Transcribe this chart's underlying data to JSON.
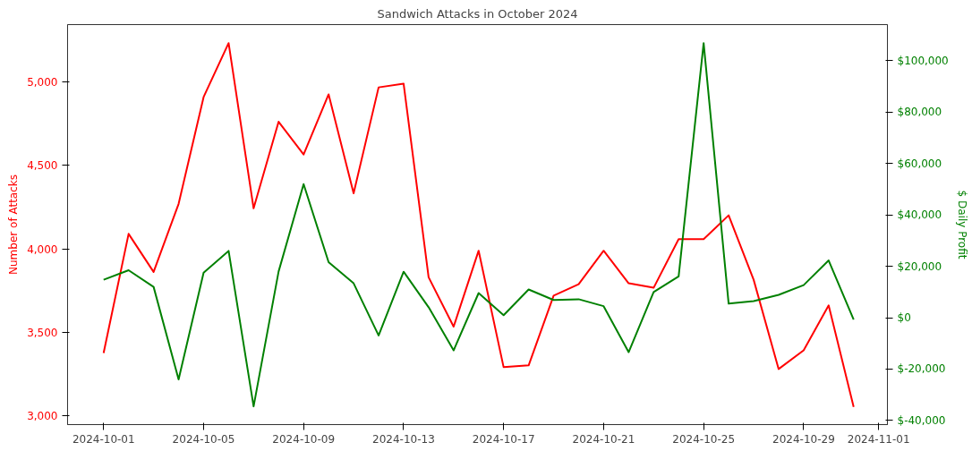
{
  "chart_data": {
    "type": "line",
    "title": "Sandwich Attacks in October 2024",
    "ylabel": "Number of Attacks",
    "y2label": "$ Daily Profit",
    "x": [
      "2024-10-01",
      "2024-10-02",
      "2024-10-03",
      "2024-10-04",
      "2024-10-05",
      "2024-10-06",
      "2024-10-07",
      "2024-10-08",
      "2024-10-09",
      "2024-10-10",
      "2024-10-11",
      "2024-10-12",
      "2024-10-13",
      "2024-10-14",
      "2024-10-15",
      "2024-10-16",
      "2024-10-17",
      "2024-10-18",
      "2024-10-19",
      "2024-10-20",
      "2024-10-21",
      "2024-10-22",
      "2024-10-23",
      "2024-10-24",
      "2024-10-25",
      "2024-10-26",
      "2024-10-27",
      "2024-10-28",
      "2024-10-29",
      "2024-10-30",
      "2024-10-31"
    ],
    "series": [
      {
        "color": "#ff0000",
        "values": [
          3376,
          4090,
          3862,
          4270,
          4910,
          5233,
          4243,
          4762,
          4566,
          4926,
          4333,
          4968,
          4990,
          3830,
          3534,
          3989,
          3291,
          3302,
          3720,
          3788,
          3989,
          3794,
          3767,
          4058,
          4058,
          4201,
          3815,
          3280,
          3392,
          3661,
          3053
        ]
      },
      {
        "color": "#008000",
        "axis": "y2",
        "values": [
          14800,
          18500,
          12000,
          -24000,
          17500,
          26000,
          -34500,
          18000,
          52000,
          21600,
          13400,
          -6900,
          17900,
          4100,
          -12700,
          9600,
          1000,
          11000,
          6900,
          7200,
          4500,
          -13400,
          10000,
          16100,
          106900,
          5500,
          6500,
          8900,
          12700,
          22300,
          -700
        ]
      }
    ],
    "xlim": [
      "2024-09-29T13:25",
      "2024-11-01T08:25"
    ],
    "xticks": [
      "2024-10-01",
      "2024-10-05",
      "2024-10-09",
      "2024-10-13",
      "2024-10-17",
      "2024-10-21",
      "2024-10-25",
      "2024-10-29",
      "2024-11-01"
    ],
    "ylim": [
      2947,
      5344
    ],
    "yticks": [
      {
        "value": 3000,
        "label": "3,000"
      },
      {
        "value": 3500,
        "label": "3,500"
      },
      {
        "value": 4000,
        "label": "4,000"
      },
      {
        "value": 4500,
        "label": "4,500"
      },
      {
        "value": 5000,
        "label": "5,000"
      }
    ],
    "y2lim": [
      -41600,
      114100
    ],
    "y2ticks": [
      {
        "value": -40000,
        "label": "$-40,000"
      },
      {
        "value": -20000,
        "label": "$-20,000"
      },
      {
        "value": 0,
        "label": "$0"
      },
      {
        "value": 20000,
        "label": "$20,000"
      },
      {
        "value": 40000,
        "label": "$40,000"
      },
      {
        "value": 60000,
        "label": "$60,000"
      },
      {
        "value": 80000,
        "label": "$80,000"
      },
      {
        "value": 100000,
        "label": "$100,000"
      }
    ],
    "grid": false,
    "line_style": "solid"
  }
}
